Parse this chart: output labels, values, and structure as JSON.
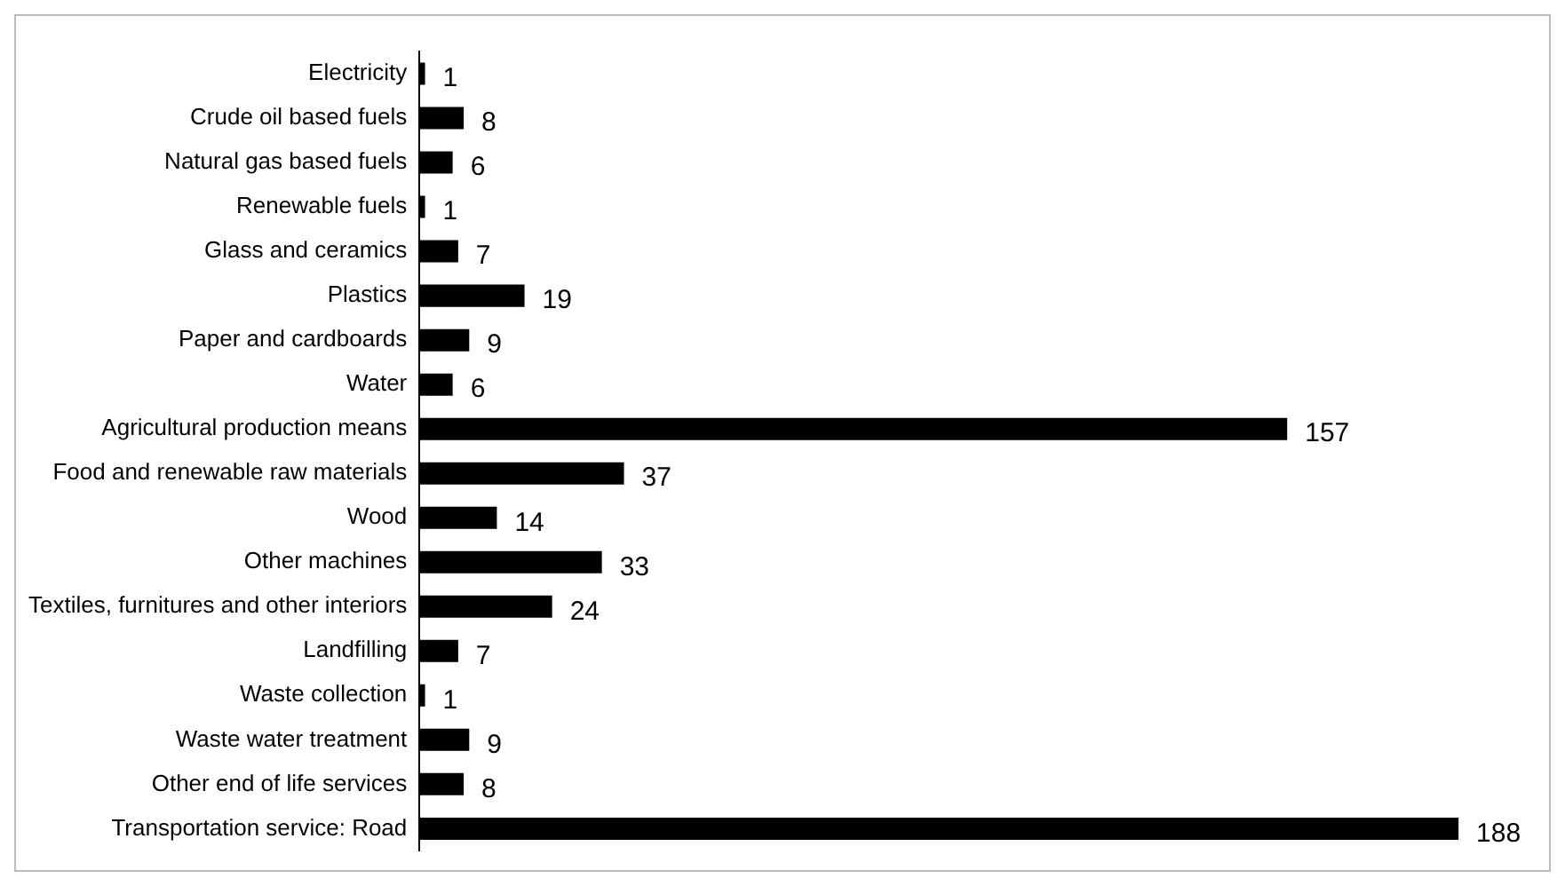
{
  "chart_data": {
    "type": "bar",
    "orientation": "horizontal",
    "categories": [
      "Electricity",
      "Crude oil based fuels",
      "Natural gas based fuels",
      "Renewable fuels",
      "Glass and ceramics",
      "Plastics",
      "Paper and cardboards",
      "Water",
      "Agricultural production means",
      "Food and renewable raw materials",
      "Wood",
      "Other machines",
      "Textiles, furnitures and other interiors",
      "Landfilling",
      "Waste collection",
      "Waste water treatment",
      "Other end of life services",
      "Transportation service: Road"
    ],
    "values": [
      1,
      8,
      6,
      1,
      7,
      19,
      9,
      6,
      157,
      37,
      14,
      33,
      24,
      7,
      1,
      9,
      8,
      188
    ],
    "color": "#000000",
    "data_labels": true,
    "grid": false,
    "legend": false
  }
}
